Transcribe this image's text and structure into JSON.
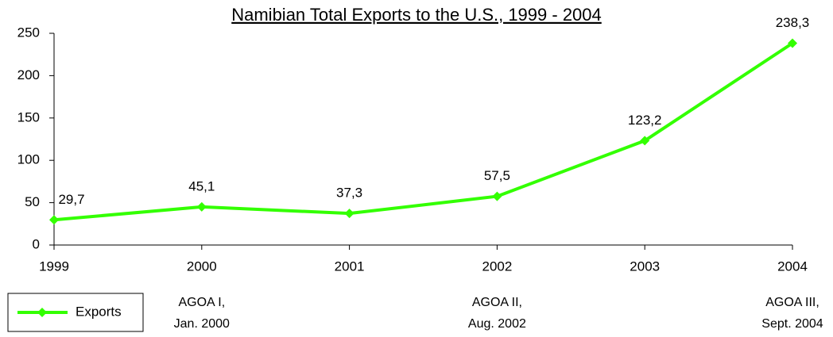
{
  "chart_data": {
    "type": "line",
    "title": "Namibian Total Exports to the U.S., 1999 - 2004",
    "x": [
      1999,
      2000,
      2001,
      2002,
      2003,
      2004
    ],
    "series": [
      {
        "name": "Exports",
        "color": "#33ff00",
        "values": [
          29.7,
          45.1,
          37.3,
          57.5,
          123.2,
          238.3
        ],
        "value_labels": [
          "29,7",
          "45,1",
          "37,3",
          "57,5",
          "123,2",
          "238,3"
        ]
      }
    ],
    "xlim": [
      1999,
      2004
    ],
    "xticks": [
      1999,
      2000,
      2001,
      2002,
      2003,
      2004
    ],
    "ylim": [
      0,
      250
    ],
    "yticks": [
      0,
      50,
      100,
      150,
      200,
      250
    ],
    "grid": false,
    "legend": "bottom-left",
    "annotations": [
      {
        "x": 2000,
        "text": [
          "AGOA I,",
          "Jan. 2000"
        ]
      },
      {
        "x": 2002,
        "text": [
          "AGOA II,",
          "Aug. 2002"
        ]
      },
      {
        "x": 2004,
        "text": [
          "AGOA III,",
          "Sept. 2004"
        ]
      }
    ]
  }
}
